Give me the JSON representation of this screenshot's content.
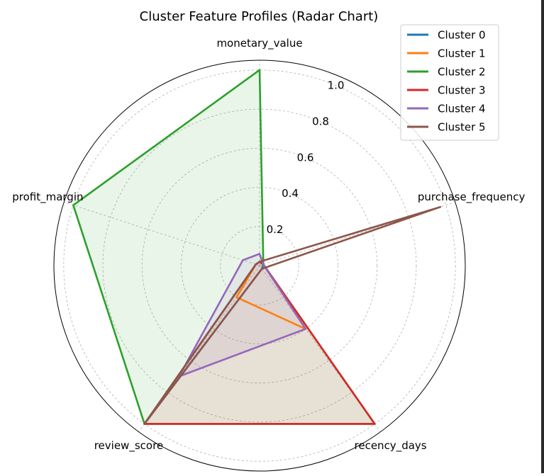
{
  "chart_data": {
    "type": "radar",
    "title": "Cluster Feature Profiles (Radar Chart)",
    "axes": [
      "monetary_value",
      "purchase_frequency",
      "recency_days",
      "review_score",
      "profit_margin"
    ],
    "rlim": [
      0,
      1.05
    ],
    "rticks": [
      0.2,
      0.4,
      0.6,
      0.8,
      1.0
    ],
    "rtick_labels": [
      "0.2",
      "0.4",
      "0.6",
      "0.8",
      "1.0"
    ],
    "grid": true,
    "legend_position": "top-right",
    "series": [
      {
        "name": "Cluster 0",
        "color": "#1f77b4",
        "values": [
          0.02,
          0.02,
          0.02,
          1.0,
          0.02
        ],
        "fill": false
      },
      {
        "name": "Cluster 1",
        "color": "#ff7f0e",
        "values": [
          0.02,
          0.02,
          0.4,
          0.2,
          0.02
        ],
        "fill": false
      },
      {
        "name": "Cluster 2",
        "color": "#2ca02c",
        "values": [
          1.0,
          0.02,
          1.0,
          1.0,
          1.0
        ],
        "fill": true
      },
      {
        "name": "Cluster 3",
        "color": "#d62728",
        "values": [
          0.02,
          0.02,
          1.0,
          1.0,
          0.02
        ],
        "fill": true
      },
      {
        "name": "Cluster 4",
        "color": "#9467bd",
        "values": [
          0.06,
          0.02,
          0.4,
          0.7,
          0.09
        ],
        "fill": true
      },
      {
        "name": "Cluster 5",
        "color": "#8c564b",
        "values": [
          0.02,
          0.97,
          0.02,
          1.0,
          0.02
        ],
        "fill": false
      }
    ]
  }
}
